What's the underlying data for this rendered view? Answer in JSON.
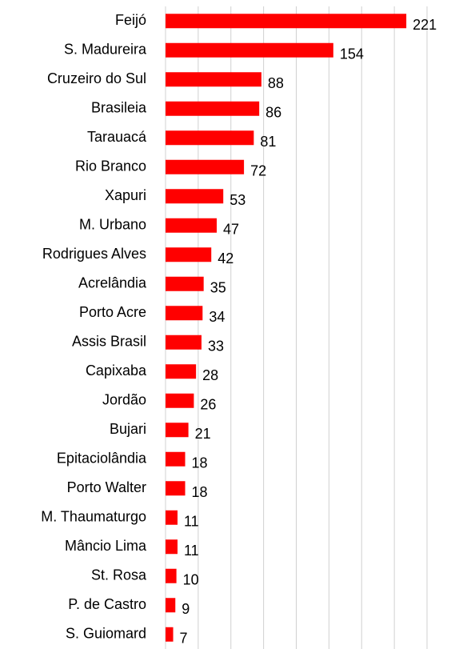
{
  "chart_data": {
    "type": "bar",
    "orientation": "horizontal",
    "categories": [
      "Feijó",
      "S. Madureira",
      "Cruzeiro do Sul",
      "Brasileia",
      "Tarauacá",
      "Rio Branco",
      "Xapuri",
      "M. Urbano",
      "Rodrigues Alves",
      "Acrelândia",
      "Porto Acre",
      "Assis Brasil",
      "Capixaba",
      "Jordão",
      "Bujari",
      "Epitaciolândia",
      "Porto Walter",
      "M. Thaumaturgo",
      "Mâncio Lima",
      "St. Rosa",
      "P. de Castro",
      "S. Guiomard"
    ],
    "values": [
      221,
      154,
      88,
      86,
      81,
      72,
      53,
      47,
      42,
      35,
      34,
      33,
      28,
      26,
      21,
      18,
      18,
      11,
      11,
      10,
      9,
      7
    ],
    "color": "#ff0000",
    "xlim": [
      0,
      240
    ],
    "xticks": [
      0,
      30,
      60,
      90,
      120,
      150,
      180,
      210,
      240
    ],
    "grid": true
  }
}
